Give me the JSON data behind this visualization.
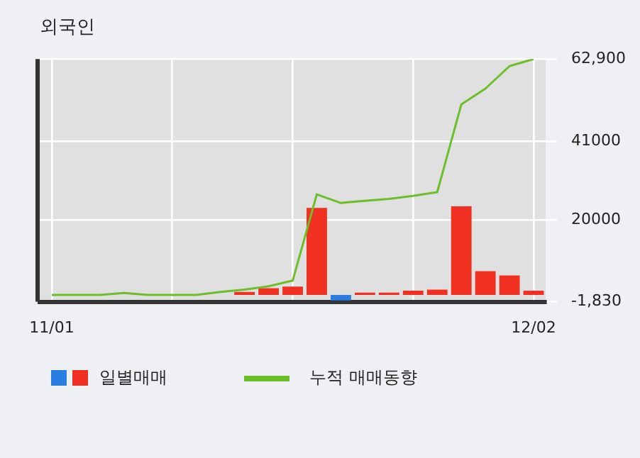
{
  "chart_data": {
    "type": "bar",
    "title": "외국인",
    "categories": [
      "11/01",
      null,
      null,
      null,
      null,
      null,
      null,
      null,
      null,
      null,
      null,
      null,
      null,
      null,
      null,
      null,
      null,
      null,
      null,
      null,
      "12/02"
    ],
    "series": [
      {
        "name": "일별매매",
        "colors": [
          "#f03020",
          "#f03020",
          "#f03020",
          "#f03020",
          "#f03020",
          "#f03020",
          "#f03020",
          "#f03020",
          "#f03020",
          "#f03020",
          "#f03020",
          "#f03020",
          "#2a7de1",
          "#f03020",
          "#f03020",
          "#f03020",
          "#f03020",
          "#f03020",
          "#f03020",
          "#f03020",
          "#f03020"
        ],
        "values": [
          0,
          0,
          0,
          0,
          0,
          0,
          0,
          0,
          800,
          1800,
          2200,
          23200,
          -1500,
          600,
          600,
          1100,
          1400,
          23600,
          6300,
          5200,
          1100
        ]
      },
      {
        "name": "누적 매매동향",
        "type": "line",
        "color": "#6cbf2a",
        "values": [
          0,
          0,
          0,
          500,
          0,
          0,
          0,
          800,
          1400,
          2300,
          3800,
          26800,
          24500,
          25100,
          25600,
          26400,
          27400,
          50800,
          55000,
          61000,
          62900
        ]
      }
    ],
    "ylim": [
      -1830,
      62900
    ],
    "yticks": [
      {
        "value": 62900,
        "label": "62,900"
      },
      41000,
      20000,
      {
        "value": -1830,
        "label": "-1,830"
      }
    ],
    "grid": true,
    "legend": "bottom"
  }
}
